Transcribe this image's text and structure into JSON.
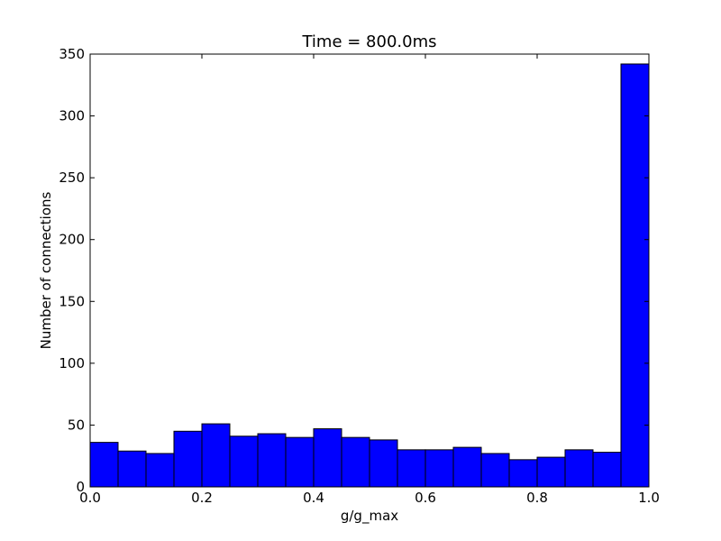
{
  "chart_data": {
    "type": "bar",
    "title": "Time = 800.0ms",
    "xlabel": "g/g_max",
    "ylabel": "Number of connections",
    "xlim": [
      0.0,
      1.0
    ],
    "ylim": [
      0,
      350
    ],
    "bin_edges": [
      0.0,
      0.05,
      0.1,
      0.15,
      0.2,
      0.25,
      0.3,
      0.35,
      0.4,
      0.45,
      0.5,
      0.55,
      0.6,
      0.65,
      0.7,
      0.75,
      0.8,
      0.85,
      0.9,
      0.95,
      1.0
    ],
    "values": [
      36,
      29,
      27,
      45,
      51,
      41,
      43,
      40,
      47,
      40,
      38,
      30,
      30,
      32,
      27,
      22,
      24,
      30,
      28,
      342
    ],
    "xticks": [
      0.0,
      0.2,
      0.4,
      0.6,
      0.8,
      1.0
    ],
    "xtick_labels": [
      "0.0",
      "0.2",
      "0.4",
      "0.6",
      "0.8",
      "1.0"
    ],
    "yticks": [
      0,
      50,
      100,
      150,
      200,
      250,
      300,
      350
    ],
    "ytick_labels": [
      "0",
      "50",
      "100",
      "150",
      "200",
      "250",
      "300",
      "350"
    ],
    "bar_color": "#0000ff",
    "edge_color": "#000000",
    "grid": false,
    "legend": "none"
  }
}
